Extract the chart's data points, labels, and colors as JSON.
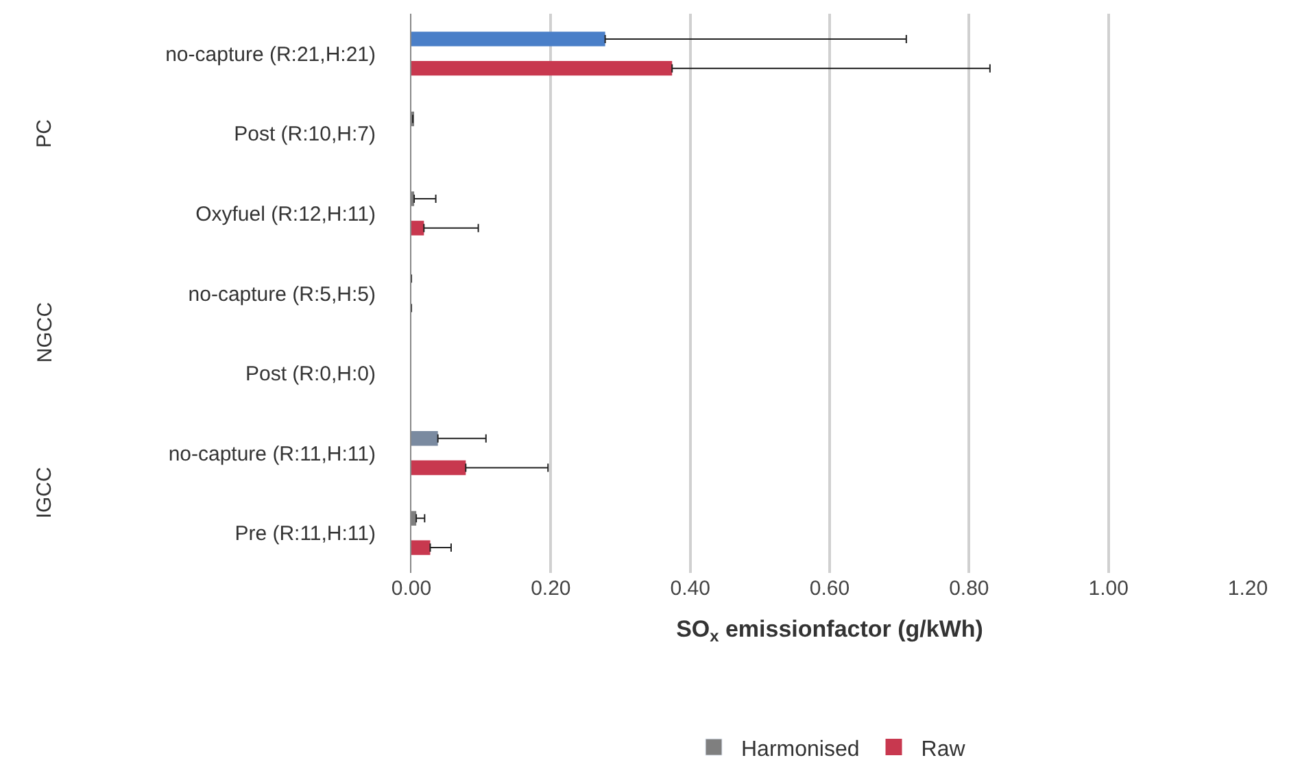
{
  "chart_data": {
    "type": "bar",
    "orientation": "horizontal",
    "categories": [
      "no-capture (R:21,H:21)",
      "Post (R:10,H:7)",
      "Oxyfuel (R:12,H:11)",
      "no-capture (R:5,H:5)",
      "Post (R:0,H:0)",
      "no-capture (R:11,H:11)",
      "Pre (R:11,H:11)"
    ],
    "series": [
      {
        "name": "Harmonised",
        "color": "#7f7f7f",
        "colors": [
          "#4a7fc8",
          "#7f7f7f",
          "#7f7f7f",
          "#7f7f7f",
          "#7f7f7f",
          "#7a8aa0",
          "#7f7f7f"
        ],
        "values": [
          0.278,
          0.002,
          0.004,
          0,
          null,
          0.038,
          0.007
        ],
        "errors": [
          [
            0.278,
            0.71
          ],
          null,
          [
            0.004,
            0.035
          ],
          null,
          null,
          [
            0.038,
            0.107
          ],
          [
            0.007,
            0.019
          ]
        ]
      },
      {
        "name": "Raw",
        "color": "#c8384f",
        "values": [
          0.374,
          null,
          0.018,
          0,
          null,
          0.078,
          0.027
        ],
        "errors": [
          [
            0.374,
            0.83
          ],
          null,
          [
            0.018,
            0.096
          ],
          null,
          null,
          [
            0.078,
            0.196
          ],
          [
            0.027,
            0.057
          ]
        ]
      }
    ],
    "xlabel": "SO$_{x}$ emissionfactor (g/kWh)",
    "xlim": [
      0,
      1.2
    ],
    "xticks": [
      {
        "value": 0,
        "label": "0.00"
      },
      {
        "value": 0.2,
        "label": "0.20"
      },
      {
        "value": 0.4,
        "label": "0.40"
      },
      {
        "value": 0.6,
        "label": "0.60"
      },
      {
        "value": 0.8,
        "label": "0.80"
      },
      {
        "value": 1.0,
        "label": "1.00"
      },
      {
        "value": 1.2,
        "label": "1.20"
      }
    ],
    "grid": "x",
    "legend": "bottom",
    "annotations": [
      "PC",
      "NGCC",
      "IGCC"
    ]
  }
}
